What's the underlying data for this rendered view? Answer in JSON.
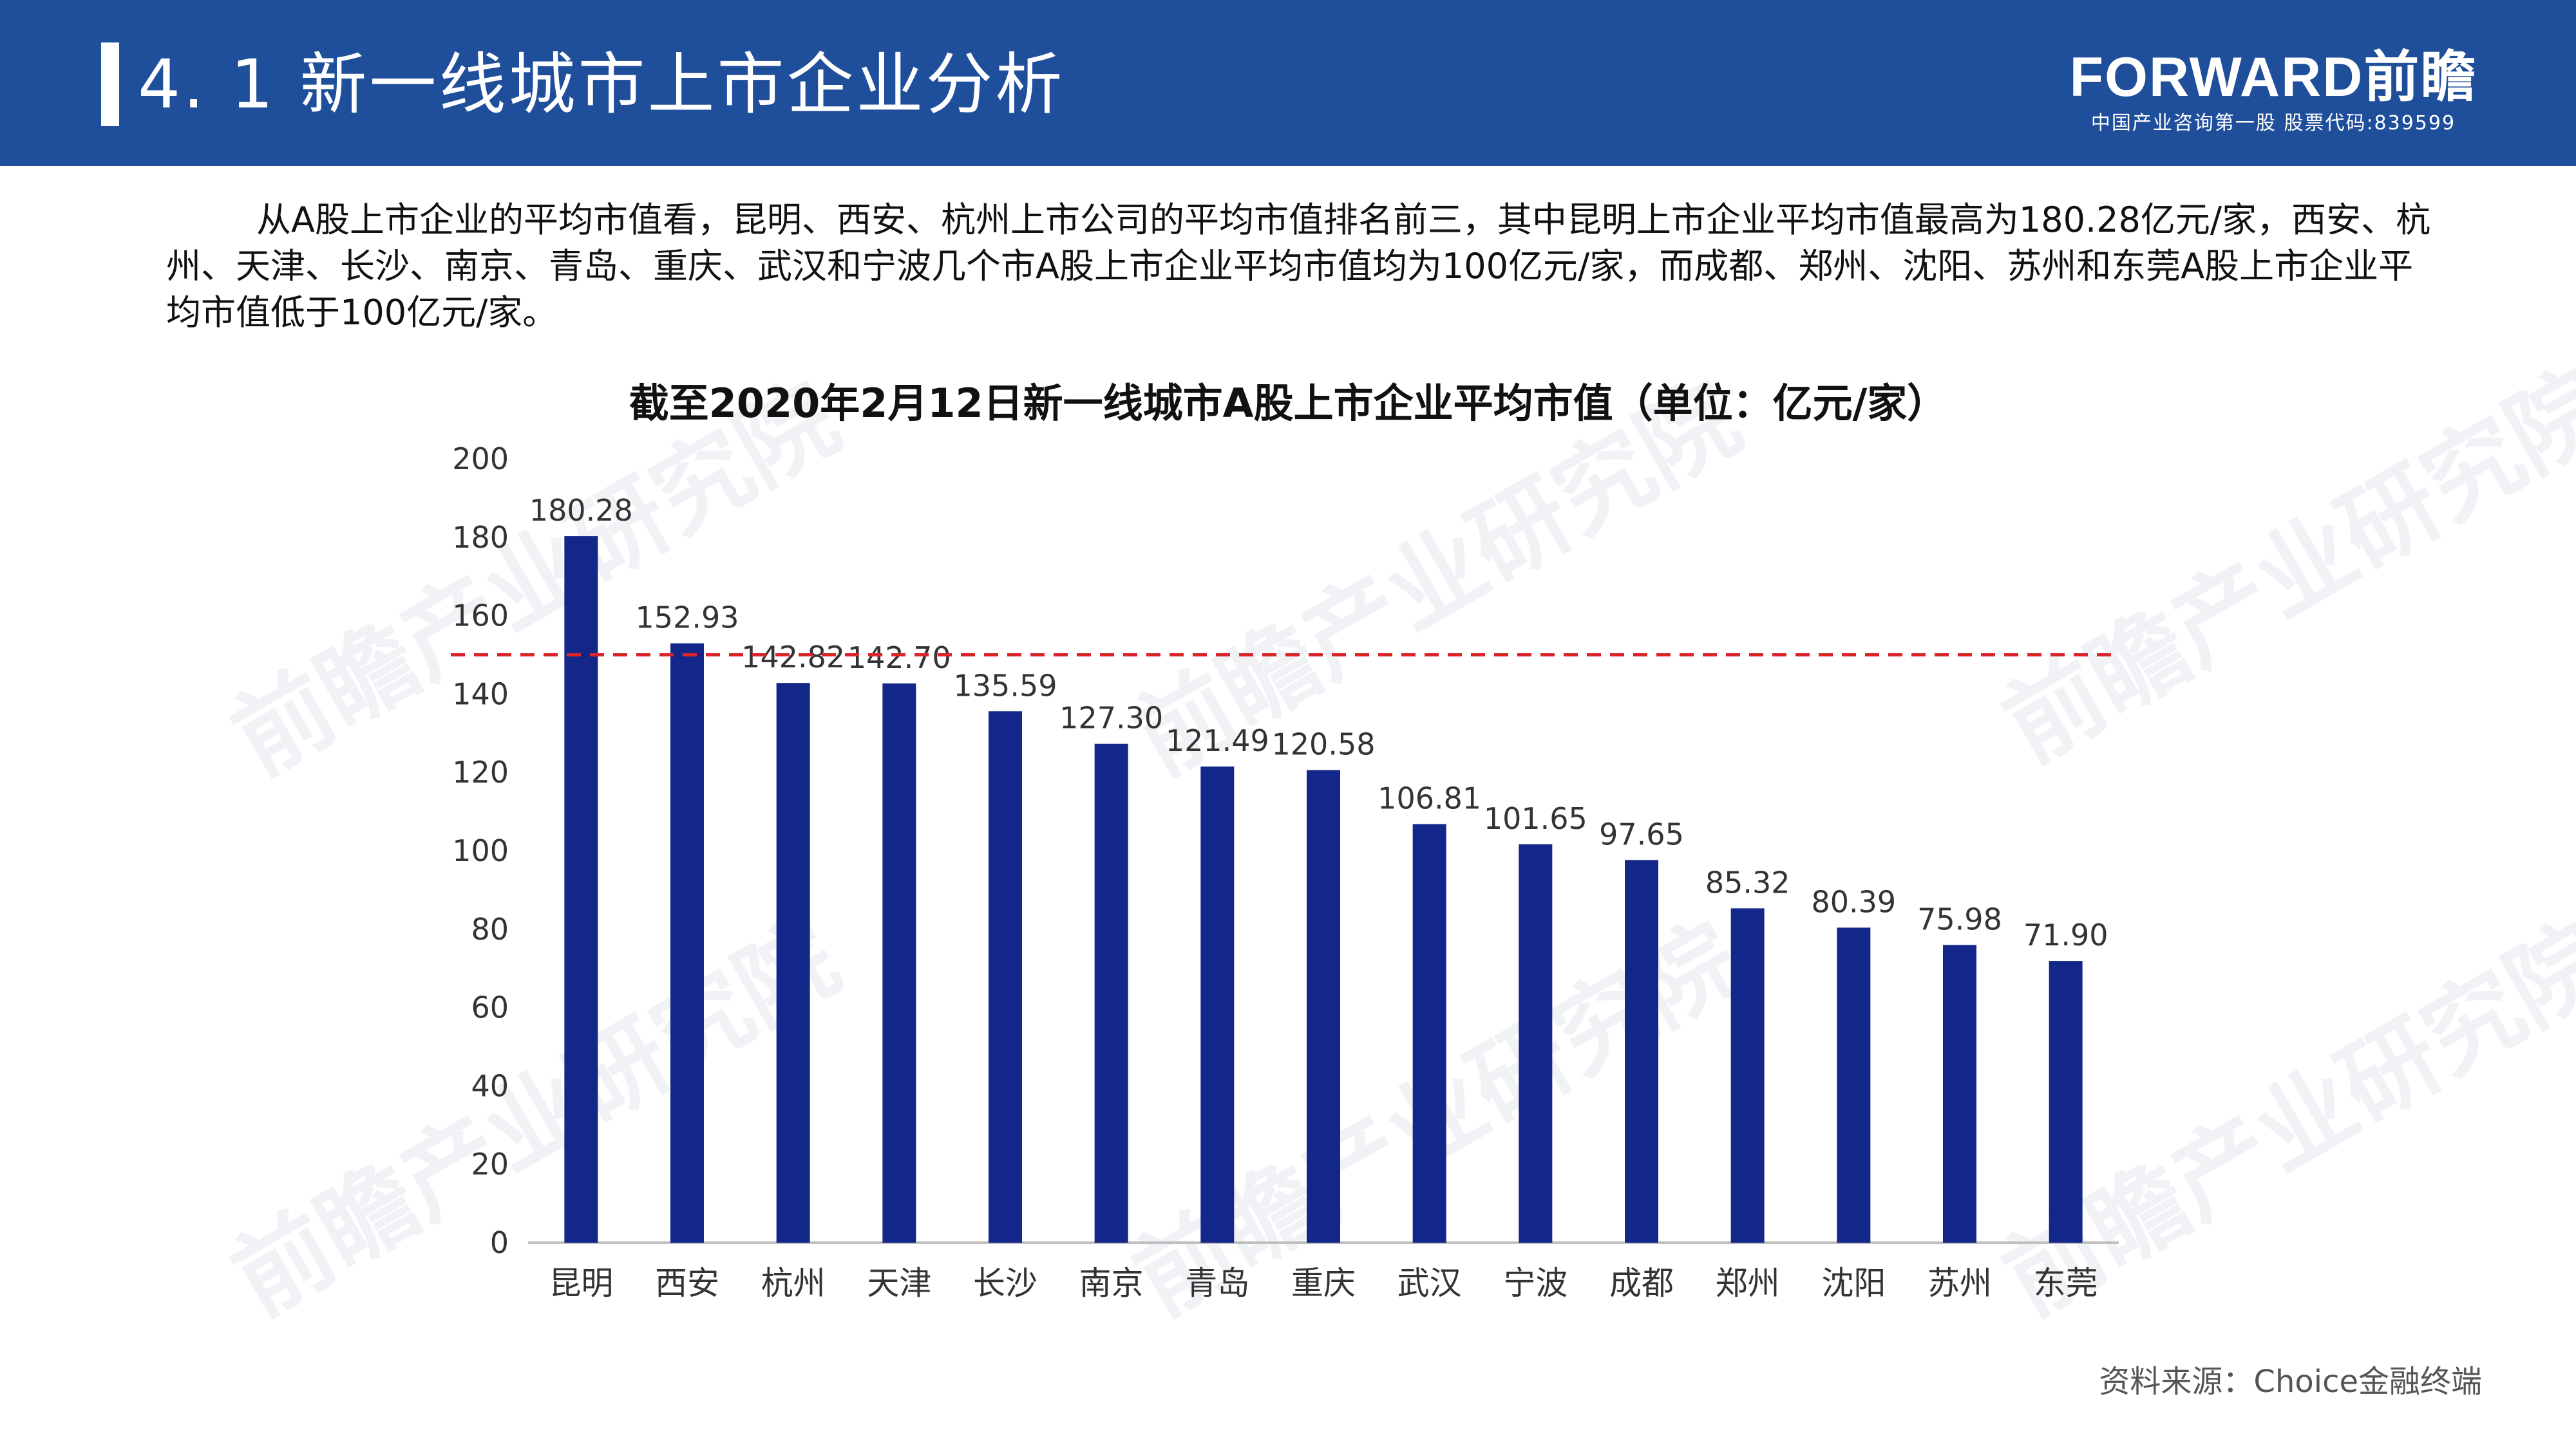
{
  "header": {
    "title": "4. 1  新一线城市上市企业分析",
    "logo": "FORWARD前瞻",
    "logo_sub": "中国产业咨询第一股  股票代码:839599"
  },
  "intro": "从A股上市企业的平均市值看，昆明、西安、杭州上市公司的平均市值排名前三，其中昆明上市企业平均市值最高为180.28亿元/家，西安、杭州、天津、长沙、南京、青岛、重庆、武汉和宁波几个市A股上市企业平均市值均为100亿元/家，而成都、郑州、沈阳、苏州和东莞A股上市企业平均市值低于100亿元/家。",
  "watermark": "前瞻产业研究院",
  "source": "资料来源：Choice金融终端",
  "colors": {
    "header_bg": "#1f4e9b",
    "bar": "#13278a",
    "reference_line": "#d9262c"
  },
  "chart_data": {
    "type": "bar",
    "title": "截至2020年2月12日新一线城市A股上市企业平均市值（单位：亿元/家）",
    "categories": [
      "昆明",
      "西安",
      "杭州",
      "天津",
      "长沙",
      "南京",
      "青岛",
      "重庆",
      "武汉",
      "宁波",
      "成都",
      "郑州",
      "沈阳",
      "苏州",
      "东莞"
    ],
    "values": [
      180.28,
      152.93,
      142.82,
      142.7,
      135.59,
      127.3,
      121.49,
      120.58,
      106.81,
      101.65,
      97.65,
      85.32,
      80.39,
      75.98,
      71.9
    ],
    "value_labels": [
      "180.28",
      "152.93",
      "142.82",
      "142.70",
      "135.59",
      "127.30",
      "121.49",
      "120.58",
      "106.81",
      "101.65",
      "97.65",
      "85.32",
      "80.39",
      "75.98",
      "71.90"
    ],
    "ylim": [
      0,
      200
    ],
    "yticks": [
      0,
      20,
      40,
      60,
      80,
      100,
      120,
      140,
      160,
      180,
      200
    ],
    "reference_line": 150,
    "grid": false,
    "legend": "none"
  }
}
